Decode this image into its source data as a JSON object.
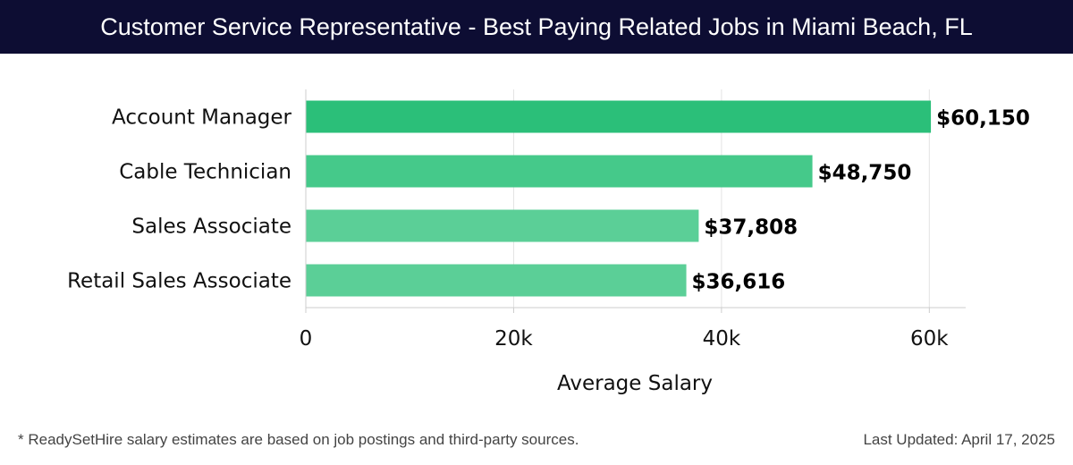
{
  "header": {
    "title": "Customer Service Representative - Best Paying Related Jobs in Miami Beach, FL"
  },
  "chart_data": {
    "type": "bar",
    "orientation": "horizontal",
    "categories": [
      "Account Manager",
      "Cable Technician",
      "Sales Associate",
      "Retail Sales Associate"
    ],
    "values": [
      60150,
      48750,
      37808,
      36616
    ],
    "value_labels": [
      "$60,150",
      "$48,750",
      "$37,808",
      "$36,616"
    ],
    "bar_colors": [
      "#2bbf79",
      "#45c98a",
      "#5bcf97",
      "#5bcf97"
    ],
    "xlabel": "Average Salary",
    "xlim": [
      0,
      63500
    ],
    "xticks": [
      0,
      20000,
      40000,
      60000
    ],
    "xtick_labels": [
      "0",
      "20k",
      "40k",
      "60k"
    ],
    "grid": true
  },
  "footer": {
    "note": "* ReadySetHire salary estimates are based on job postings and third-party sources.",
    "updated": "Last Updated: April 17, 2025"
  }
}
